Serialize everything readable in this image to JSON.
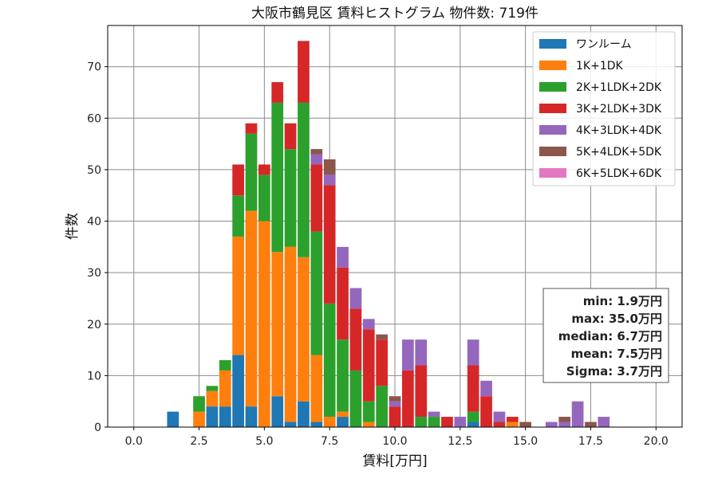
{
  "chart_data": {
    "type": "bar",
    "stacked": true,
    "title": "大阪市鶴見区 賃料ヒストグラム 物件数: 719件",
    "xlabel": "賃料[万円]",
    "ylabel": "件数",
    "xlim": [
      -1,
      21
    ],
    "ylim": [
      0,
      78
    ],
    "xticks": [
      "0.0",
      "2.5",
      "5.0",
      "7.5",
      "10.0",
      "12.5",
      "15.0",
      "17.5",
      "20.0"
    ],
    "xtick_values": [
      0,
      2.5,
      5,
      7.5,
      10,
      12.5,
      15,
      17.5,
      20
    ],
    "yticks": [
      "0",
      "10",
      "20",
      "30",
      "40",
      "50",
      "60",
      "70"
    ],
    "ytick_values": [
      0,
      10,
      20,
      30,
      40,
      50,
      60,
      70
    ],
    "bin_width": 0.5,
    "grid": true,
    "legend_position": "top-right",
    "x": [
      1.5,
      2.5,
      3.0,
      3.5,
      4.0,
      4.5,
      5.0,
      5.5,
      6.0,
      6.5,
      7.0,
      7.5,
      8.0,
      8.5,
      9.0,
      9.5,
      10.0,
      10.5,
      11.0,
      11.5,
      12.0,
      12.5,
      13.0,
      13.5,
      14.0,
      14.5,
      15.0,
      16.0,
      16.5,
      17.0,
      17.5,
      18.0
    ],
    "series": [
      {
        "name": "ワンルーム",
        "color": "#1f77b4",
        "values": [
          3,
          0,
          4,
          4,
          14,
          4,
          0,
          6,
          1,
          5,
          1,
          0,
          2,
          0,
          0,
          0,
          0,
          0,
          0,
          0,
          0,
          0,
          1,
          0,
          0,
          0,
          0,
          0,
          0,
          0,
          0,
          0
        ]
      },
      {
        "name": "1K+1DK",
        "color": "#ff7f0e",
        "values": [
          0,
          3,
          3,
          7,
          23,
          38,
          40,
          28,
          34,
          28,
          13,
          2,
          1,
          0,
          1,
          0,
          0,
          0,
          0,
          0,
          0,
          0,
          0,
          0,
          0,
          1,
          0,
          0,
          0,
          0,
          0,
          0
        ]
      },
      {
        "name": "2K+1LDK+2DK",
        "color": "#2ca02c",
        "values": [
          0,
          3,
          1,
          2,
          8,
          15,
          9,
          29,
          19,
          30,
          24,
          22,
          14,
          11,
          4,
          8,
          0,
          0,
          2,
          2,
          0,
          0,
          2,
          0,
          0,
          0,
          0,
          0,
          0,
          0,
          0,
          0
        ]
      },
      {
        "name": "3K+2LDK+3DK",
        "color": "#d62728",
        "values": [
          0,
          0,
          0,
          0,
          6,
          2,
          2,
          4,
          5,
          12,
          13,
          23,
          14,
          12,
          14,
          9,
          4,
          11,
          10,
          0,
          2,
          0,
          9,
          6,
          1,
          1,
          0,
          0,
          0,
          0,
          0,
          0
        ]
      },
      {
        "name": "4K+3LDK+4DK",
        "color": "#9467bd",
        "values": [
          0,
          0,
          0,
          0,
          0,
          0,
          0,
          0,
          0,
          0,
          2,
          2,
          4,
          4,
          2,
          0,
          1,
          6,
          5,
          1,
          0,
          2,
          5,
          3,
          2,
          0,
          0,
          1,
          1,
          5,
          0,
          2
        ]
      },
      {
        "name": "5K+4LDK+5DK",
        "color": "#8c564b",
        "values": [
          0,
          0,
          0,
          0,
          0,
          0,
          0,
          0,
          0,
          0,
          1,
          3,
          0,
          0,
          0,
          1,
          1,
          0,
          0,
          0,
          0,
          0,
          0,
          0,
          0,
          0,
          1,
          0,
          1,
          0,
          1,
          0
        ]
      },
      {
        "name": "6K+5LDK+6DK",
        "color": "#e377c2",
        "values": [
          0,
          0,
          0,
          0,
          0,
          0,
          0,
          0,
          0,
          0,
          0,
          0,
          0,
          0,
          0,
          0,
          0,
          0,
          0,
          0,
          0,
          0,
          0,
          0,
          0,
          0,
          0,
          0,
          0,
          0,
          0,
          0
        ]
      }
    ],
    "stats": [
      "min: 1.9万円",
      "max: 35.0万円",
      "median: 6.7万円",
      "mean: 7.5万円",
      "Sigma: 3.7万円"
    ]
  }
}
